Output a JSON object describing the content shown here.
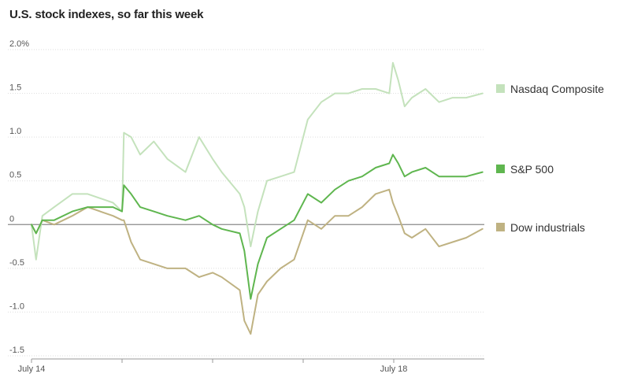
{
  "chart_data": {
    "type": "line",
    "title": "U.S. stock indexes, so far this week",
    "xlabel": "",
    "ylabel": "",
    "ylim": [
      -1.5,
      2.0
    ],
    "xlim": [
      0,
      5
    ],
    "y_ticks": [
      {
        "value": 2.0,
        "label": "2.0%"
      },
      {
        "value": 1.5,
        "label": "1.5"
      },
      {
        "value": 1.0,
        "label": "1.0"
      },
      {
        "value": 0.5,
        "label": "0.5"
      },
      {
        "value": 0,
        "label": "0"
      },
      {
        "value": -0.5,
        "label": "-0.5"
      },
      {
        "value": -1.0,
        "label": "-1.0"
      },
      {
        "value": -1.5,
        "label": "-1.5"
      }
    ],
    "x_ticks": [
      {
        "value": 0,
        "label": "July 14"
      },
      {
        "value": 1,
        "label": ""
      },
      {
        "value": 2,
        "label": ""
      },
      {
        "value": 3,
        "label": ""
      },
      {
        "value": 4,
        "label": "July 18"
      }
    ],
    "legend_placement": "right",
    "series": [
      {
        "name": "Nasdaq Composite",
        "color": "#c4e2bc",
        "x": [
          0,
          0.05,
          0.12,
          0.25,
          0.45,
          0.62,
          0.9,
          1.0,
          1.02,
          1.1,
          1.2,
          1.35,
          1.5,
          1.7,
          1.85,
          2.0,
          2.1,
          2.3,
          2.35,
          2.42,
          2.5,
          2.6,
          2.75,
          2.9,
          3.05,
          3.2,
          3.35,
          3.5,
          3.65,
          3.8,
          3.95,
          3.99,
          4.05,
          4.12,
          4.2,
          4.35,
          4.5,
          4.65,
          4.8,
          4.98
        ],
        "y": [
          0.0,
          -0.4,
          0.1,
          0.2,
          0.35,
          0.35,
          0.25,
          0.15,
          1.05,
          1.0,
          0.8,
          0.95,
          0.75,
          0.6,
          1.0,
          0.75,
          0.6,
          0.35,
          0.2,
          -0.25,
          0.15,
          0.5,
          0.55,
          0.6,
          1.2,
          1.4,
          1.5,
          1.5,
          1.55,
          1.55,
          1.5,
          1.85,
          1.65,
          1.35,
          1.45,
          1.55,
          1.4,
          1.45,
          1.45,
          1.5
        ]
      },
      {
        "name": "S&P 500",
        "color": "#5fb64f",
        "x": [
          0,
          0.05,
          0.12,
          0.25,
          0.45,
          0.62,
          0.9,
          1.0,
          1.02,
          1.1,
          1.2,
          1.35,
          1.5,
          1.7,
          1.85,
          2.0,
          2.1,
          2.3,
          2.35,
          2.42,
          2.5,
          2.6,
          2.75,
          2.9,
          3.05,
          3.2,
          3.35,
          3.5,
          3.65,
          3.8,
          3.95,
          3.99,
          4.05,
          4.12,
          4.2,
          4.35,
          4.5,
          4.65,
          4.8,
          4.98
        ],
        "y": [
          0.0,
          -0.1,
          0.05,
          0.05,
          0.15,
          0.2,
          0.2,
          0.15,
          0.45,
          0.35,
          0.2,
          0.15,
          0.1,
          0.05,
          0.1,
          0.0,
          -0.05,
          -0.1,
          -0.3,
          -0.85,
          -0.45,
          -0.15,
          -0.05,
          0.05,
          0.35,
          0.25,
          0.4,
          0.5,
          0.55,
          0.65,
          0.7,
          0.8,
          0.7,
          0.55,
          0.6,
          0.65,
          0.55,
          0.55,
          0.55,
          0.6
        ]
      },
      {
        "name": "Dow industrials",
        "color": "#bfb282",
        "x": [
          0,
          0.05,
          0.12,
          0.25,
          0.45,
          0.62,
          0.9,
          1.0,
          1.02,
          1.1,
          1.2,
          1.35,
          1.5,
          1.7,
          1.85,
          2.0,
          2.1,
          2.3,
          2.35,
          2.42,
          2.5,
          2.6,
          2.75,
          2.9,
          3.05,
          3.2,
          3.35,
          3.5,
          3.65,
          3.8,
          3.95,
          3.99,
          4.05,
          4.12,
          4.2,
          4.35,
          4.5,
          4.65,
          4.8,
          4.98
        ],
        "y": [
          0.0,
          -0.1,
          0.05,
          0.0,
          0.1,
          0.2,
          0.1,
          0.05,
          0.05,
          -0.2,
          -0.4,
          -0.45,
          -0.5,
          -0.5,
          -0.6,
          -0.55,
          -0.6,
          -0.75,
          -1.1,
          -1.25,
          -0.8,
          -0.65,
          -0.5,
          -0.4,
          0.05,
          -0.05,
          0.1,
          0.1,
          0.2,
          0.35,
          0.4,
          0.25,
          0.1,
          -0.1,
          -0.15,
          -0.05,
          -0.25,
          -0.2,
          -0.15,
          -0.05
        ]
      }
    ]
  }
}
